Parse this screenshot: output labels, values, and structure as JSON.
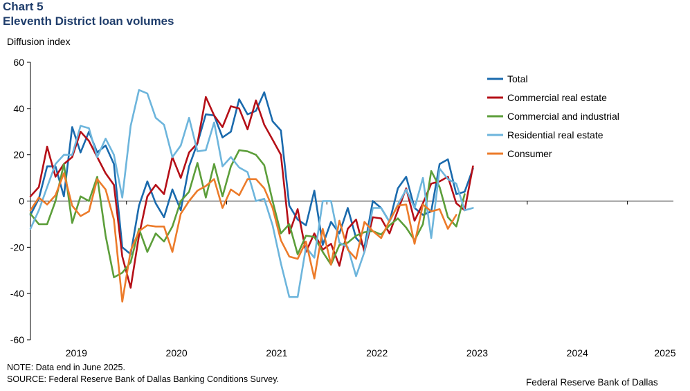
{
  "header": {
    "chart_number": "Chart 5",
    "title": "Eleventh District loan volumes"
  },
  "footer": {
    "note": "NOTE: Data end in June 2025.",
    "source": "SOURCE: Federal Reserve Bank of Dallas Banking Conditions Survey.",
    "credit": "Federal Reserve Bank of Dallas"
  },
  "chart_data": {
    "type": "line",
    "ylabel": "Diffusion index",
    "ylim": [
      -60,
      60
    ],
    "yticks": [
      -60,
      -40,
      -20,
      0,
      20,
      40,
      60
    ],
    "xlim": [
      0,
      77
    ],
    "x_ticks": [
      {
        "label": "2019",
        "pos": 5.5
      },
      {
        "label": "2020",
        "pos": 17.5
      },
      {
        "label": "2021",
        "pos": 29.5
      },
      {
        "label": "2022",
        "pos": 41.5
      },
      {
        "label": "2023",
        "pos": 53.5
      },
      {
        "label": "2024",
        "pos": 65.5
      },
      {
        "label": "2025",
        "pos": 76
      }
    ],
    "x_minor_ticks": [
      11.5,
      23.5,
      35.5,
      47.5,
      59.5,
      71.5
    ],
    "series": [
      {
        "name": "Total",
        "color": "#1a6aad",
        "values": [
          -6,
          1,
          15,
          15,
          2,
          32,
          21,
          30,
          21,
          24,
          16,
          -20,
          -23,
          -2,
          8.5,
          -1,
          -7,
          5,
          -4,
          15,
          25,
          37.5,
          37,
          27.5,
          30,
          44,
          37.5,
          39,
          47,
          34.5,
          30.5,
          -2,
          -8,
          -10.5,
          4.5,
          -19,
          -9,
          -14,
          -3,
          -16,
          -20,
          0,
          -3,
          -9,
          5.5,
          10.5,
          -3,
          -6,
          -4.5,
          16,
          18,
          3,
          4,
          14
        ]
      },
      {
        "name": "Commercial real estate",
        "color": "#b50f17",
        "values": [
          2,
          6,
          23.5,
          10.5,
          16,
          19,
          30,
          26,
          19,
          12,
          7,
          -24,
          -37.5,
          -15,
          2,
          7,
          3,
          19,
          10,
          21,
          25,
          45,
          37,
          32,
          41,
          40,
          31,
          43.5,
          33,
          26.5,
          20,
          -14,
          -3.5,
          -22,
          -14,
          -21,
          -18.5,
          -28,
          -12,
          -8,
          -22,
          -7,
          -7.5,
          -14,
          -4,
          5.5,
          -8.5,
          -1,
          7.5,
          8.5,
          10.5,
          -1,
          -4,
          15
        ]
      },
      {
        "name": "Commercial and industrial",
        "color": "#5c9e3a",
        "values": [
          -5.5,
          -10,
          -10,
          0,
          16,
          -9.5,
          2,
          0,
          10.5,
          -15,
          -33,
          -31,
          -26.5,
          -12,
          -22,
          -14,
          -17.5,
          -11,
          0,
          4,
          16.5,
          1.5,
          16,
          2,
          15,
          22,
          21.5,
          20,
          15.5,
          0,
          -14,
          -10,
          -23,
          -15,
          -15.5,
          -22,
          -27.5,
          -19,
          -18,
          -15,
          -13.5,
          -13,
          -14.5,
          -10.5,
          -7.5,
          -11.5,
          -17,
          -10,
          13,
          6,
          -7,
          -11,
          3
        ]
      },
      {
        "name": "Residential real estate",
        "color": "#6db5dc",
        "values": [
          -12,
          -4,
          6,
          16,
          20,
          20,
          32.5,
          31.5,
          19,
          27,
          20,
          1.5,
          32.5,
          48,
          46.5,
          36,
          33,
          19,
          24,
          36,
          21.5,
          22,
          34,
          15,
          19,
          14.5,
          12.5,
          0,
          1,
          -10.5,
          -27,
          -41.5,
          -41.5,
          -20,
          -24.5,
          0,
          0,
          -18,
          -20,
          -32.5,
          -22,
          -3,
          -3,
          -9,
          -1.5,
          5,
          -3,
          10,
          -16,
          14,
          9.5,
          7.5,
          -4,
          -3
        ]
      },
      {
        "name": "Consumer",
        "color": "#ec7b2a",
        "values": [
          -4,
          1.5,
          -1.5,
          2.5,
          12,
          -2,
          -6.5,
          -4.5,
          9.5,
          5,
          -8,
          -43.5,
          -21.5,
          -13,
          -10.5,
          -11,
          -11,
          -22,
          -5.5,
          0,
          4.5,
          6.5,
          9.5,
          -3,
          5,
          2.5,
          9.5,
          9.5,
          5.5,
          -3,
          -17,
          -24,
          -25,
          -17.5,
          -33.5,
          -12,
          -27.5,
          -8.5,
          -21,
          -25,
          -9,
          -13,
          -16,
          -8.5,
          -2,
          -1.5,
          -18.5,
          -1.5,
          -4.5,
          -3.5,
          -12,
          -6
        ]
      }
    ]
  }
}
